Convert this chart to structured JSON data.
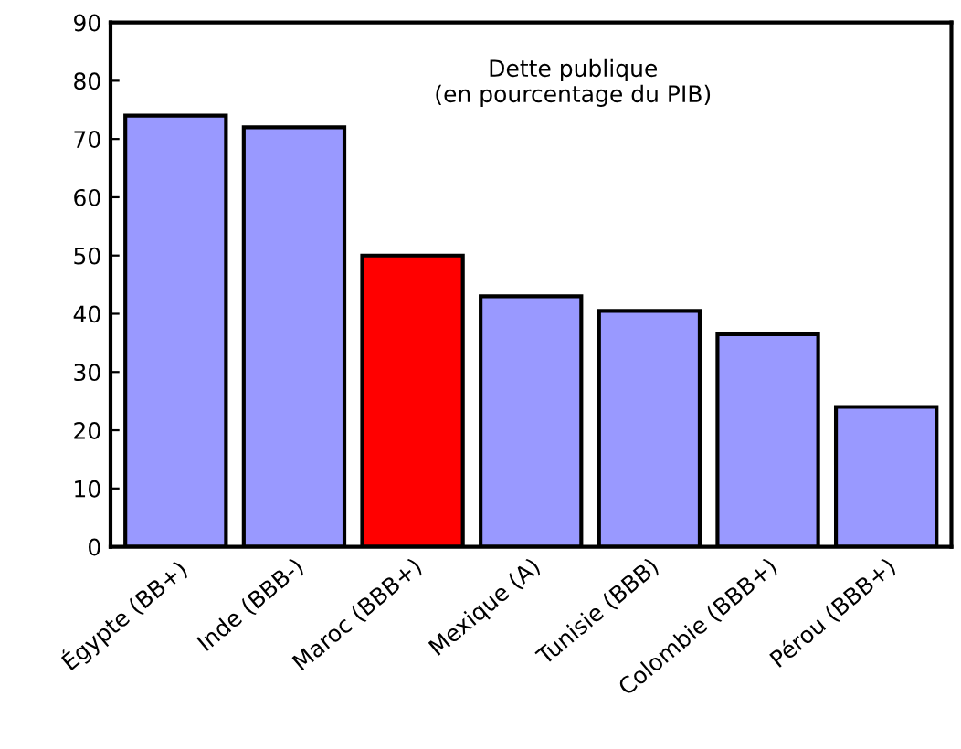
{
  "chart_data": {
    "type": "bar",
    "title": "Dette publique\n(en pourcentage du PIB)",
    "categories": [
      "Égypte (BB+)",
      "Inde (BBB-)",
      "Maroc (BBB+)",
      "Mexique (A)",
      "Tunisie (BBB)",
      "Colombie (BBB+)",
      "Pérou (BBB+)"
    ],
    "values": [
      74,
      72,
      50,
      43,
      40.5,
      36.5,
      24
    ],
    "colors": [
      "#9999ff",
      "#9999ff",
      "#ff0000",
      "#9999ff",
      "#9999ff",
      "#9999ff",
      "#9999ff"
    ],
    "ylim": [
      0,
      90
    ],
    "yticks": [
      0,
      10,
      20,
      30,
      40,
      50,
      60,
      70,
      80,
      90
    ],
    "grid": false
  }
}
